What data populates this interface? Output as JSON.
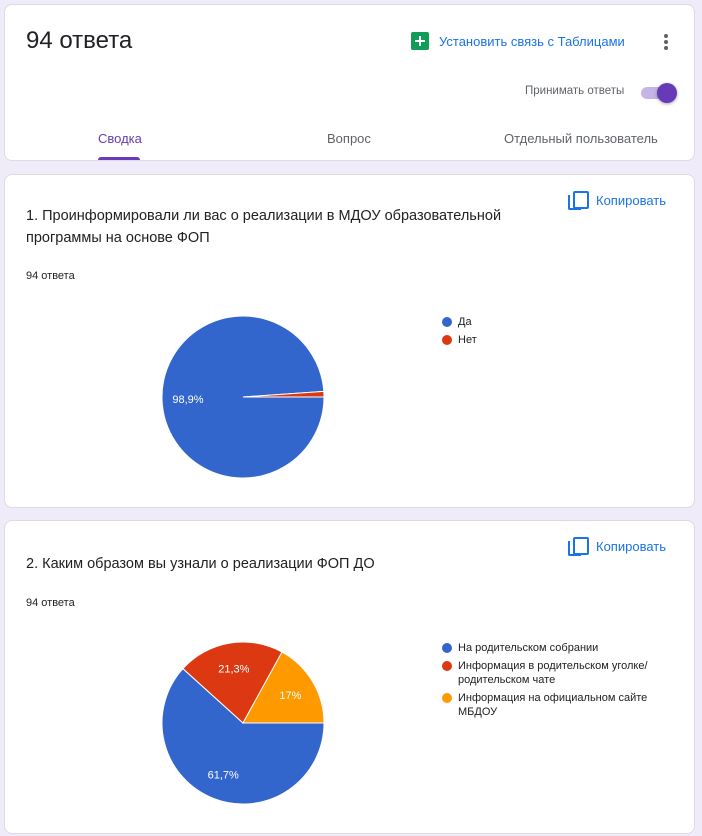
{
  "header": {
    "title": "94 ответа",
    "sheets_link": "Установить связь с Таблицами",
    "accept_label": "Принимать ответы",
    "accepting": true,
    "tabs": [
      {
        "label": "Сводка",
        "active": true
      },
      {
        "label": "Вопрос",
        "active": false
      },
      {
        "label": "Отдельный пользователь",
        "active": false
      }
    ]
  },
  "colors": {
    "accent": "#673ab7",
    "link": "#1a73e8",
    "sheets": "#0f9d58",
    "series": [
      "#3366cc",
      "#dc3912",
      "#ff9900"
    ]
  },
  "questions": [
    {
      "title": "1. Проинформировали ли вас о реализации в МДОУ образовательной программы на основе ФОП",
      "count": "94 ответа",
      "copy_label": "Копировать"
    },
    {
      "title": "2. Каким образом вы узнали о реализации ФОП ДО",
      "count": "94 ответа",
      "copy_label": "Копировать"
    }
  ],
  "chart_data": [
    {
      "type": "pie",
      "categories": [
        "Да",
        "Нет"
      ],
      "values": [
        98.9,
        1.1
      ],
      "slice_labels": [
        "98,9%",
        ""
      ],
      "colors": [
        "#3366cc",
        "#dc3912"
      ],
      "legend": "right"
    },
    {
      "type": "pie",
      "categories": [
        "На родительском собрании",
        "Информация в родительском уголке/ родительском чате",
        "Информация на официальном сайте МБДОУ"
      ],
      "values": [
        61.7,
        21.3,
        17
      ],
      "slice_labels": [
        "61,7%",
        "21,3%",
        "17%"
      ],
      "colors": [
        "#3366cc",
        "#dc3912",
        "#ff9900"
      ],
      "legend": "right"
    }
  ]
}
